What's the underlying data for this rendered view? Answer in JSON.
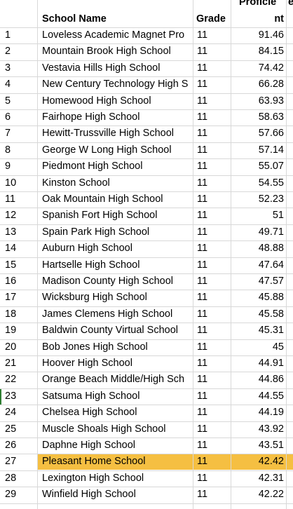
{
  "headers": {
    "school_name": "School Name",
    "grade": "Grade",
    "proficient_line1": "Proficie",
    "proficient_line2": "nt"
  },
  "rows": [
    {
      "num": "1",
      "name": "Loveless Academic Magnet Pro",
      "grade": "11",
      "prof": "91.46"
    },
    {
      "num": "2",
      "name": "Mountain Brook High School",
      "grade": "11",
      "prof": "84.15"
    },
    {
      "num": "3",
      "name": "Vestavia Hills High School",
      "grade": "11",
      "prof": "74.42"
    },
    {
      "num": "4",
      "name": "New Century Technology High S",
      "grade": "11",
      "prof": "66.28"
    },
    {
      "num": "5",
      "name": "Homewood High School",
      "grade": "11",
      "prof": "63.93"
    },
    {
      "num": "6",
      "name": "Fairhope High School",
      "grade": "11",
      "prof": "58.63"
    },
    {
      "num": "7",
      "name": "Hewitt-Trussville High School",
      "grade": "11",
      "prof": "57.66"
    },
    {
      "num": "8",
      "name": "George W Long High School",
      "grade": "11",
      "prof": "57.14"
    },
    {
      "num": "9",
      "name": "Piedmont High School",
      "grade": "11",
      "prof": "55.07"
    },
    {
      "num": "10",
      "name": "Kinston School",
      "grade": "11",
      "prof": "54.55"
    },
    {
      "num": "11",
      "name": "Oak Mountain High School",
      "grade": "11",
      "prof": "52.23"
    },
    {
      "num": "12",
      "name": "Spanish Fort High School",
      "grade": "11",
      "prof": "51"
    },
    {
      "num": "13",
      "name": "Spain Park High School",
      "grade": "11",
      "prof": "49.71"
    },
    {
      "num": "14",
      "name": "Auburn High School",
      "grade": "11",
      "prof": "48.88"
    },
    {
      "num": "15",
      "name": "Hartselle High School",
      "grade": "11",
      "prof": "47.64"
    },
    {
      "num": "16",
      "name": "Madison County High School",
      "grade": "11",
      "prof": "47.57"
    },
    {
      "num": "17",
      "name": "Wicksburg High School",
      "grade": "11",
      "prof": "45.88"
    },
    {
      "num": "18",
      "name": "James Clemens High School",
      "grade": "11",
      "prof": "45.58"
    },
    {
      "num": "19",
      "name": "Baldwin County Virtual School",
      "grade": "11",
      "prof": "45.31"
    },
    {
      "num": "20",
      "name": "Bob Jones High School",
      "grade": "11",
      "prof": "45"
    },
    {
      "num": "21",
      "name": "Hoover High School",
      "grade": "11",
      "prof": "44.91"
    },
    {
      "num": "22",
      "name": "Orange Beach Middle/High Sch",
      "grade": "11",
      "prof": "44.86"
    },
    {
      "num": "23",
      "name": "Satsuma High School",
      "grade": "11",
      "prof": "44.55"
    },
    {
      "num": "24",
      "name": "Chelsea High School",
      "grade": "11",
      "prof": "44.19"
    },
    {
      "num": "25",
      "name": "Muscle Shoals High School",
      "grade": "11",
      "prof": "43.92"
    },
    {
      "num": "26",
      "name": "Daphne High School",
      "grade": "11",
      "prof": "43.51"
    },
    {
      "num": "27",
      "name": "Pleasant Home School",
      "grade": "11",
      "prof": "42.42"
    },
    {
      "num": "28",
      "name": "Lexington High School",
      "grade": "11",
      "prof": "42.31"
    },
    {
      "num": "29",
      "name": "Winfield High School",
      "grade": "11",
      "prof": "42.22"
    }
  ],
  "highlight_row": "27",
  "highlight_color": "#f5bf42",
  "gridline_color": "#d8d8d8"
}
